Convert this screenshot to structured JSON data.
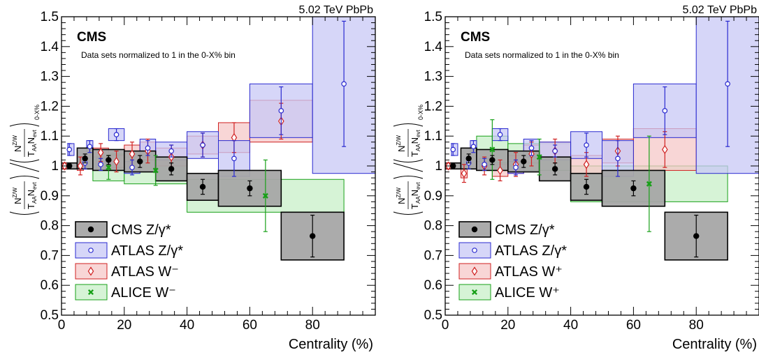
{
  "colors": {
    "cms": "#000000",
    "cms_fill": "#a6a6a6",
    "atlas_z": "#2a2ad0",
    "atlas_z_fill": "#c8c8f5",
    "atlas_w": "#d02020",
    "atlas_w_fill": "#f5c8c8",
    "alice": "#18a018",
    "alice_fill": "#c8efc8"
  },
  "chart_data": [
    {
      "type": "scatter",
      "energy_label": "5.02 TeV PbPb",
      "experiment": "CMS",
      "note": "Data sets normalized to 1 in the 0-X% bin",
      "xlabel": "Centrality (%)",
      "ylabel": {
        "num_N": "N",
        "num_sup": "Z/W",
        "den_T": "T",
        "den_Tsub": "AA",
        "den_N": "N",
        "den_Nsub": "evt",
        "subscript": "0-X%"
      },
      "xlim": [
        0,
        100
      ],
      "ylim": [
        0.5,
        1.5
      ],
      "xticks": [
        "0",
        "20",
        "40",
        "60",
        "80"
      ],
      "yticks": [
        "0.5",
        "0.6",
        "0.7",
        "0.8",
        "0.9",
        "1",
        "1.1",
        "1.2",
        "1.3",
        "1.4",
        "1.5"
      ],
      "legend": [
        {
          "label": "CMS Z/γ*",
          "series": "cms"
        },
        {
          "label": "ATLAS Z/γ*",
          "series": "atlas_z"
        },
        {
          "label": "ATLAS W⁻",
          "series": "atlas_w"
        },
        {
          "label": "ALICE W⁻",
          "series": "alice"
        }
      ],
      "series": [
        {
          "key": "cms",
          "marker": "circle-filled",
          "points": [
            {
              "x": 2.5,
              "y": 1.0,
              "xlo": 0,
              "xhi": 5,
              "err": 0.005,
              "syst": 0.01
            },
            {
              "x": 7.5,
              "y": 1.025,
              "xlo": 5,
              "xhi": 10,
              "err": 0.015,
              "syst": 0.035
            },
            {
              "x": 15,
              "y": 1.02,
              "xlo": 10,
              "xhi": 20,
              "err": 0.015,
              "syst": 0.035
            },
            {
              "x": 25,
              "y": 1.015,
              "xlo": 20,
              "xhi": 30,
              "err": 0.02,
              "syst": 0.035
            },
            {
              "x": 35,
              "y": 0.99,
              "xlo": 30,
              "xhi": 40,
              "err": 0.02,
              "syst": 0.04
            },
            {
              "x": 45,
              "y": 0.93,
              "xlo": 40,
              "xhi": 50,
              "err": 0.025,
              "syst": 0.045
            },
            {
              "x": 60,
              "y": 0.925,
              "xlo": 50,
              "xhi": 70,
              "err": 0.025,
              "syst": 0.06
            },
            {
              "x": 80,
              "y": 0.765,
              "xlo": 70,
              "xhi": 90,
              "err": 0.07,
              "syst": 0.08
            }
          ]
        },
        {
          "key": "atlas_z",
          "marker": "circle-open",
          "points": [
            {
              "x": 2.5,
              "y": 1.055,
              "xlo": 2,
              "xhi": 4,
              "err": 0.02,
              "syst": 0.02
            },
            {
              "x": 7.5,
              "y": 1.01,
              "xlo": 6,
              "xhi": 8,
              "err": 0.02,
              "syst": 0.02
            },
            {
              "x": 9,
              "y": 1.065,
              "xlo": 8,
              "xhi": 10,
              "err": 0.02,
              "syst": 0.02
            },
            {
              "x": 12.5,
              "y": 1.005,
              "xlo": 11,
              "xhi": 14,
              "err": 0.02,
              "syst": 0.02
            },
            {
              "x": 17.5,
              "y": 1.105,
              "xlo": 15,
              "xhi": 20,
              "err": 0.02,
              "syst": 0.02
            },
            {
              "x": 22.5,
              "y": 0.995,
              "xlo": 20,
              "xhi": 25,
              "err": 0.025,
              "syst": 0.02
            },
            {
              "x": 27.5,
              "y": 1.06,
              "xlo": 25,
              "xhi": 30,
              "err": 0.025,
              "syst": 0.03
            },
            {
              "x": 35,
              "y": 1.05,
              "xlo": 30,
              "xhi": 40,
              "err": 0.02,
              "syst": 0.03
            },
            {
              "x": 45,
              "y": 1.07,
              "xlo": 40,
              "xhi": 50,
              "err": 0.04,
              "syst": 0.045
            },
            {
              "x": 55,
              "y": 1.025,
              "xlo": 50,
              "xhi": 60,
              "err": 0.06,
              "syst": 0.06
            },
            {
              "x": 70,
              "y": 1.185,
              "xlo": 60,
              "xhi": 80,
              "err": 0.08,
              "syst": 0.09
            },
            {
              "x": 90,
              "y": 1.275,
              "xlo": 80,
              "xhi": 100,
              "err": 0.21,
              "syst": 0.3
            }
          ]
        },
        {
          "key": "atlas_w",
          "marker": "diamond-open",
          "points": [
            {
              "x": 1,
              "y": 1.0,
              "xlo": 0,
              "xhi": 2,
              "err": 0.01,
              "syst": 0.01
            },
            {
              "x": 6,
              "y": 1.0,
              "xlo": 5,
              "xhi": 7,
              "err": 0.03,
              "syst": 0.015
            },
            {
              "x": 12.5,
              "y": 1.045,
              "xlo": 10,
              "xhi": 15,
              "err": 0.03,
              "syst": 0.015
            },
            {
              "x": 17.5,
              "y": 1.015,
              "xlo": 15,
              "xhi": 20,
              "err": 0.035,
              "syst": 0.02
            },
            {
              "x": 22.5,
              "y": 1.04,
              "xlo": 20,
              "xhi": 25,
              "err": 0.04,
              "syst": 0.03
            },
            {
              "x": 27.5,
              "y": 1.05,
              "xlo": 25,
              "xhi": 30,
              "err": 0.04,
              "syst": 0.03
            },
            {
              "x": 35,
              "y": 1.03,
              "xlo": 30,
              "xhi": 40,
              "err": 0.04,
              "syst": 0.03
            },
            {
              "x": 45,
              "y": 1.07,
              "xlo": 40,
              "xhi": 50,
              "err": 0.04,
              "syst": 0.03
            },
            {
              "x": 55,
              "y": 1.095,
              "xlo": 50,
              "xhi": 60,
              "err": 0.05,
              "syst": 0.05
            },
            {
              "x": 70,
              "y": 1.15,
              "xlo": 60,
              "xhi": 80,
              "err": 0.06,
              "syst": 0.07
            }
          ]
        },
        {
          "key": "alice",
          "marker": "cross",
          "points": [
            {
              "x": 15,
              "y": 0.995,
              "xlo": 10,
              "xhi": 20,
              "err": 0.04,
              "syst": 0.045
            },
            {
              "x": 30,
              "y": 0.985,
              "xlo": 20,
              "xhi": 40,
              "err": 0.05,
              "syst": 0.045
            },
            {
              "x": 65,
              "y": 0.9,
              "xlo": 40,
              "xhi": 90,
              "err": 0.12,
              "syst": 0.055
            }
          ]
        }
      ]
    },
    {
      "type": "scatter",
      "energy_label": "5.02 TeV PbPb",
      "experiment": "CMS",
      "note": "Data sets normalized to 1 in the 0-X% bin",
      "xlabel": "Centrality (%)",
      "ylabel": {
        "num_N": "N",
        "num_sup": "Z/W",
        "den_T": "T",
        "den_Tsub": "AA",
        "den_N": "N",
        "den_Nsub": "evt",
        "subscript": "0-X%"
      },
      "xlim": [
        0,
        100
      ],
      "ylim": [
        0.5,
        1.5
      ],
      "xticks": [
        "0",
        "20",
        "40",
        "60",
        "80"
      ],
      "yticks": [
        "0.5",
        "0.6",
        "0.7",
        "0.8",
        "0.9",
        "1",
        "1.1",
        "1.2",
        "1.3",
        "1.4",
        "1.5"
      ],
      "legend": [
        {
          "label": "CMS Z/γ*",
          "series": "cms"
        },
        {
          "label": "ATLAS Z/γ*",
          "series": "atlas_z"
        },
        {
          "label": "ATLAS W⁺",
          "series": "atlas_w"
        },
        {
          "label": "ALICE W⁺",
          "series": "alice"
        }
      ],
      "series": [
        {
          "key": "cms",
          "marker": "circle-filled",
          "points": [
            {
              "x": 2.5,
              "y": 1.0,
              "xlo": 0,
              "xhi": 5,
              "err": 0.005,
              "syst": 0.01
            },
            {
              "x": 7.5,
              "y": 1.025,
              "xlo": 5,
              "xhi": 10,
              "err": 0.015,
              "syst": 0.035
            },
            {
              "x": 15,
              "y": 1.02,
              "xlo": 10,
              "xhi": 20,
              "err": 0.015,
              "syst": 0.035
            },
            {
              "x": 25,
              "y": 1.015,
              "xlo": 20,
              "xhi": 30,
              "err": 0.02,
              "syst": 0.035
            },
            {
              "x": 35,
              "y": 0.99,
              "xlo": 30,
              "xhi": 40,
              "err": 0.02,
              "syst": 0.04
            },
            {
              "x": 45,
              "y": 0.93,
              "xlo": 40,
              "xhi": 50,
              "err": 0.025,
              "syst": 0.045
            },
            {
              "x": 60,
              "y": 0.925,
              "xlo": 50,
              "xhi": 70,
              "err": 0.025,
              "syst": 0.06
            },
            {
              "x": 80,
              "y": 0.765,
              "xlo": 70,
              "xhi": 90,
              "err": 0.07,
              "syst": 0.08
            }
          ]
        },
        {
          "key": "atlas_z",
          "marker": "circle-open",
          "points": [
            {
              "x": 2.5,
              "y": 1.055,
              "xlo": 2,
              "xhi": 4,
              "err": 0.02,
              "syst": 0.02
            },
            {
              "x": 7.5,
              "y": 1.01,
              "xlo": 6,
              "xhi": 8,
              "err": 0.02,
              "syst": 0.02
            },
            {
              "x": 9,
              "y": 1.065,
              "xlo": 8,
              "xhi": 10,
              "err": 0.02,
              "syst": 0.02
            },
            {
              "x": 12.5,
              "y": 1.005,
              "xlo": 11,
              "xhi": 14,
              "err": 0.02,
              "syst": 0.02
            },
            {
              "x": 17.5,
              "y": 1.105,
              "xlo": 15,
              "xhi": 20,
              "err": 0.02,
              "syst": 0.02
            },
            {
              "x": 22.5,
              "y": 0.995,
              "xlo": 20,
              "xhi": 25,
              "err": 0.025,
              "syst": 0.02
            },
            {
              "x": 27.5,
              "y": 1.06,
              "xlo": 25,
              "xhi": 30,
              "err": 0.025,
              "syst": 0.03
            },
            {
              "x": 35,
              "y": 1.05,
              "xlo": 30,
              "xhi": 40,
              "err": 0.02,
              "syst": 0.03
            },
            {
              "x": 45,
              "y": 1.07,
              "xlo": 40,
              "xhi": 50,
              "err": 0.04,
              "syst": 0.045
            },
            {
              "x": 55,
              "y": 1.025,
              "xlo": 50,
              "xhi": 60,
              "err": 0.06,
              "syst": 0.06
            },
            {
              "x": 70,
              "y": 1.185,
              "xlo": 60,
              "xhi": 80,
              "err": 0.08,
              "syst": 0.09
            },
            {
              "x": 90,
              "y": 1.275,
              "xlo": 80,
              "xhi": 100,
              "err": 0.21,
              "syst": 0.3
            }
          ]
        },
        {
          "key": "atlas_w",
          "marker": "diamond-open",
          "points": [
            {
              "x": 1,
              "y": 1.0,
              "xlo": 0,
              "xhi": 2,
              "err": 0.01,
              "syst": 0.01
            },
            {
              "x": 6,
              "y": 0.975,
              "xlo": 5,
              "xhi": 7,
              "err": 0.03,
              "syst": 0.015
            },
            {
              "x": 12.5,
              "y": 1.0,
              "xlo": 10,
              "xhi": 15,
              "err": 0.03,
              "syst": 0.015
            },
            {
              "x": 17.5,
              "y": 0.985,
              "xlo": 15,
              "xhi": 20,
              "err": 0.035,
              "syst": 0.02
            },
            {
              "x": 22.5,
              "y": 1.005,
              "xlo": 20,
              "xhi": 25,
              "err": 0.04,
              "syst": 0.03
            },
            {
              "x": 27.5,
              "y": 1.04,
              "xlo": 25,
              "xhi": 30,
              "err": 0.04,
              "syst": 0.03
            },
            {
              "x": 35,
              "y": 1.05,
              "xlo": 30,
              "xhi": 40,
              "err": 0.04,
              "syst": 0.03
            },
            {
              "x": 45,
              "y": 1.005,
              "xlo": 40,
              "xhi": 50,
              "err": 0.04,
              "syst": 0.03
            },
            {
              "x": 55,
              "y": 1.05,
              "xlo": 50,
              "xhi": 60,
              "err": 0.05,
              "syst": 0.04
            },
            {
              "x": 70,
              "y": 1.055,
              "xlo": 60,
              "xhi": 80,
              "err": 0.06,
              "syst": 0.07
            }
          ]
        },
        {
          "key": "alice",
          "marker": "cross",
          "points": [
            {
              "x": 15,
              "y": 1.055,
              "xlo": 10,
              "xhi": 20,
              "err": 0.1,
              "syst": 0.045
            },
            {
              "x": 30,
              "y": 1.03,
              "xlo": 20,
              "xhi": 40,
              "err": 0.06,
              "syst": 0.045
            },
            {
              "x": 65,
              "y": 0.94,
              "xlo": 40,
              "xhi": 90,
              "err": 0.16,
              "syst": 0.06
            }
          ]
        }
      ]
    }
  ]
}
